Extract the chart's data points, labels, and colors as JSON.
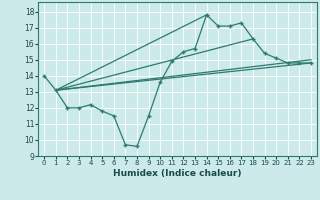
{
  "xlabel": "Humidex (Indice chaleur)",
  "bg_color": "#cceaea",
  "line_color": "#2d7a70",
  "grid_color": "#ffffff",
  "xlim": [
    -0.5,
    23.5
  ],
  "ylim": [
    9,
    18.6
  ],
  "xticks": [
    0,
    1,
    2,
    3,
    4,
    5,
    6,
    7,
    8,
    9,
    10,
    11,
    12,
    13,
    14,
    15,
    16,
    17,
    18,
    19,
    20,
    21,
    22,
    23
  ],
  "yticks": [
    9,
    10,
    11,
    12,
    13,
    14,
    15,
    16,
    17,
    18
  ],
  "main_x": [
    0,
    1,
    2,
    3,
    4,
    5,
    6,
    7,
    8,
    9,
    10,
    11,
    12,
    13,
    14,
    15,
    16,
    17,
    18,
    19,
    20,
    21,
    22,
    23
  ],
  "main_y": [
    14.0,
    13.1,
    12.0,
    12.0,
    12.2,
    11.8,
    11.5,
    9.7,
    9.6,
    11.5,
    13.6,
    14.9,
    15.5,
    15.7,
    17.8,
    17.1,
    17.1,
    17.3,
    16.3,
    15.4,
    15.1,
    14.8,
    14.8,
    14.8
  ],
  "fan_lines": [
    {
      "x": [
        1,
        23
      ],
      "y": [
        13.1,
        14.8
      ]
    },
    {
      "x": [
        1,
        23
      ],
      "y": [
        13.1,
        15.0
      ]
    },
    {
      "x": [
        1,
        18
      ],
      "y": [
        13.1,
        16.3
      ]
    },
    {
      "x": [
        1,
        20
      ],
      "y": [
        13.1,
        15.4
      ]
    }
  ]
}
